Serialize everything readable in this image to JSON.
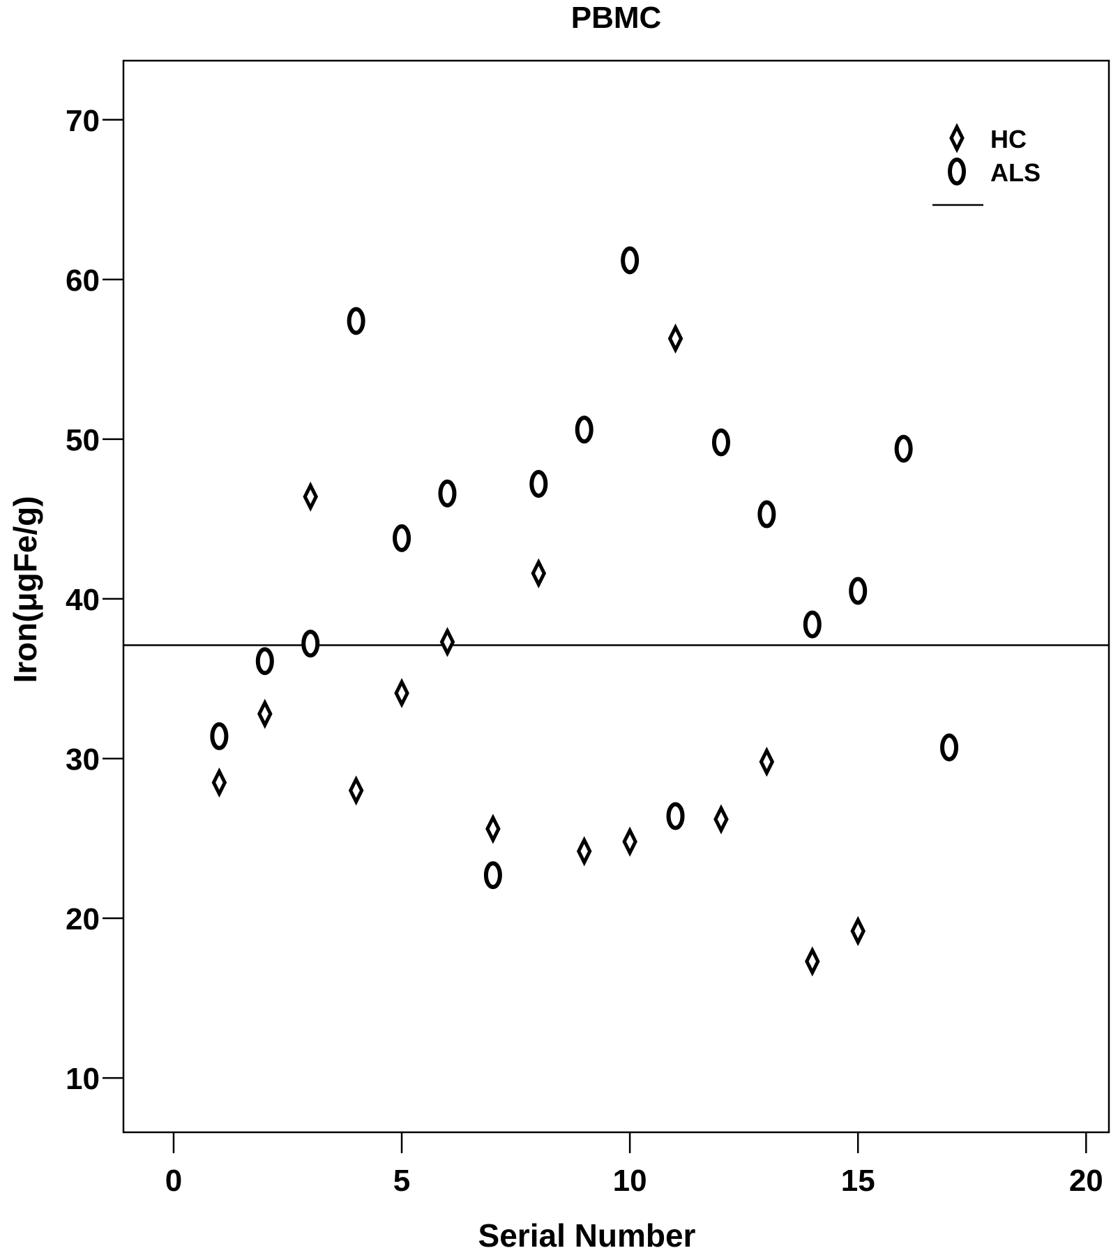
{
  "chart_data": {
    "type": "scatter",
    "title": "PBMC",
    "xlabel": "Serial Number",
    "ylabel": "Iron(μgFe/g)",
    "xlim": [
      -1.1,
      20.5
    ],
    "ylim": [
      6.6,
      73.7
    ],
    "xticks": [
      0,
      5,
      10,
      15,
      20
    ],
    "yticks": [
      10,
      20,
      30,
      40,
      50,
      60,
      70
    ],
    "grid": false,
    "legend": "top-right",
    "series": [
      {
        "name": "HC",
        "marker": "diamond",
        "points": [
          {
            "x": 1,
            "y": 28.5
          },
          {
            "x": 2,
            "y": 32.8
          },
          {
            "x": 3,
            "y": 46.4
          },
          {
            "x": 4,
            "y": 28.0
          },
          {
            "x": 5,
            "y": 34.1
          },
          {
            "x": 6,
            "y": 37.3
          },
          {
            "x": 7,
            "y": 25.6
          },
          {
            "x": 8,
            "y": 41.6
          },
          {
            "x": 9,
            "y": 24.2
          },
          {
            "x": 10,
            "y": 24.8
          },
          {
            "x": 11,
            "y": 56.3
          },
          {
            "x": 12,
            "y": 26.2
          },
          {
            "x": 13,
            "y": 29.8
          },
          {
            "x": 14,
            "y": 17.3
          },
          {
            "x": 15,
            "y": 19.2
          }
        ]
      },
      {
        "name": "ALS",
        "marker": "ellipse",
        "points": [
          {
            "x": 1,
            "y": 31.4
          },
          {
            "x": 2,
            "y": 36.1
          },
          {
            "x": 3,
            "y": 37.2
          },
          {
            "x": 4,
            "y": 57.4
          },
          {
            "x": 5,
            "y": 43.8
          },
          {
            "x": 6,
            "y": 46.6
          },
          {
            "x": 7,
            "y": 22.7
          },
          {
            "x": 8,
            "y": 47.2
          },
          {
            "x": 9,
            "y": 50.6
          },
          {
            "x": 10,
            "y": 61.2
          },
          {
            "x": 11,
            "y": 26.4
          },
          {
            "x": 12,
            "y": 49.8
          },
          {
            "x": 13,
            "y": 45.3
          },
          {
            "x": 14,
            "y": 38.4
          },
          {
            "x": 15,
            "y": 40.5
          },
          {
            "x": 16,
            "y": 49.4
          },
          {
            "x": 17,
            "y": 30.7
          }
        ]
      }
    ],
    "reference_line": {
      "y": 37.1
    },
    "colors": {
      "marker": "#000000",
      "background": "#ffffff"
    }
  }
}
